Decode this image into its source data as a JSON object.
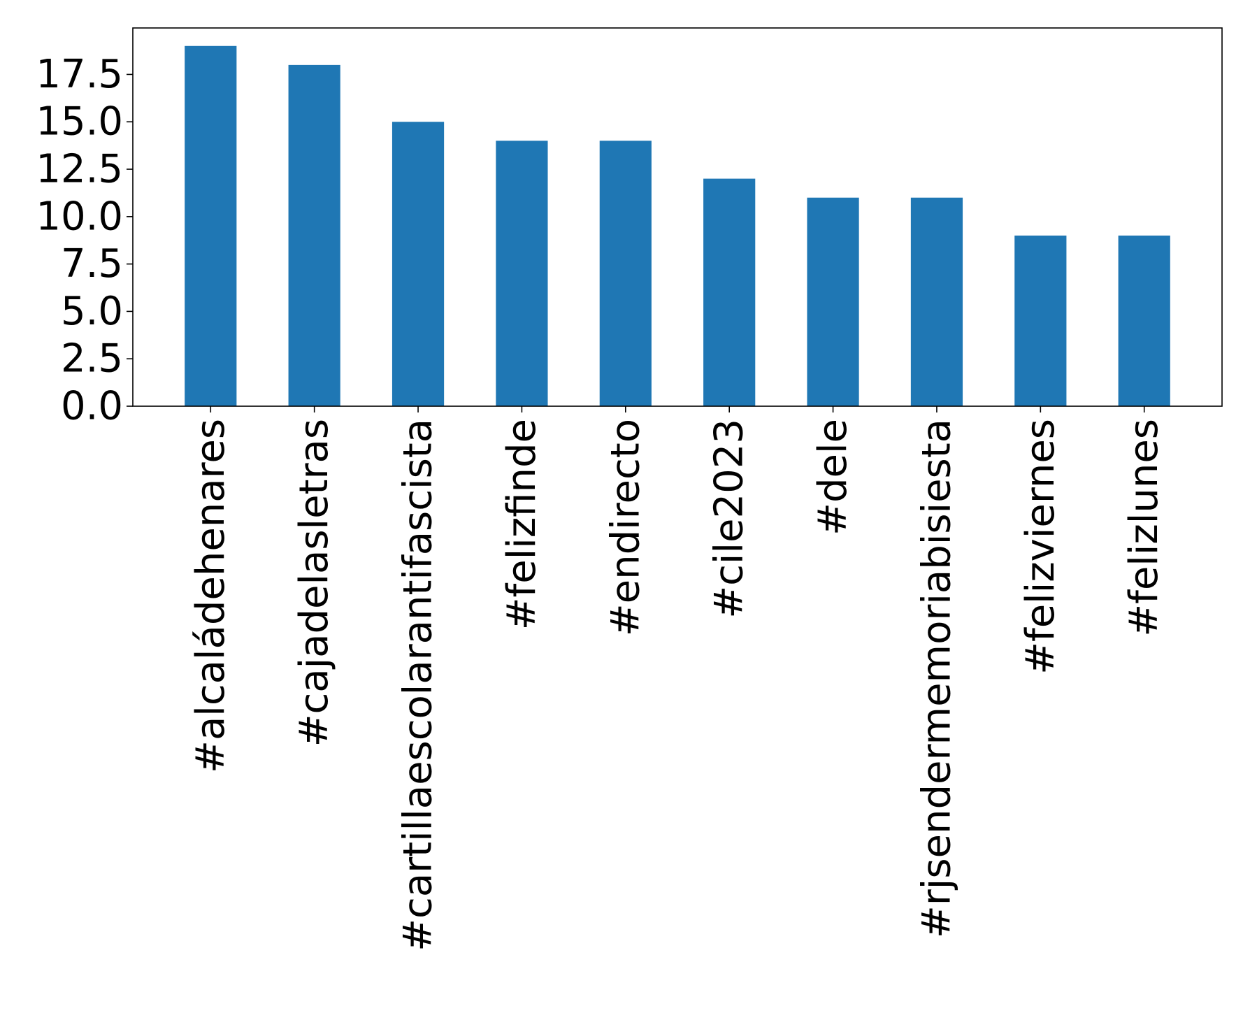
{
  "chart_data": {
    "type": "bar",
    "title": "",
    "xlabel": "",
    "ylabel": "",
    "categories": [
      "#alcaládehenares",
      "#cajadelasletras",
      "#cartillaescolarantifascista",
      "#felizfinde",
      "#endirecto",
      "#cile2023",
      "#dele",
      "#rjsendermemoriabisiesta",
      "#felizviernes",
      "#felizlunes"
    ],
    "values": [
      19,
      18,
      15,
      14,
      14,
      12,
      11,
      11,
      9,
      9
    ],
    "ylim": [
      0,
      19.95
    ],
    "yticks": [
      "0.0",
      "2.5",
      "5.0",
      "7.5",
      "10.0",
      "12.5",
      "15.0",
      "17.5"
    ],
    "grid": false,
    "legend": "none",
    "bar_color": "#1f77b4"
  }
}
